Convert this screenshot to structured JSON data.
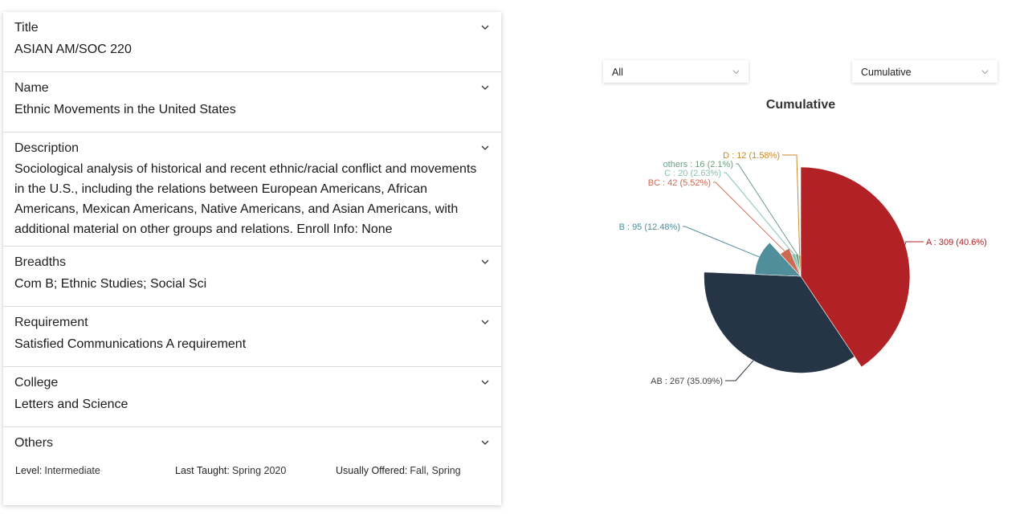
{
  "sections": {
    "title": {
      "header": "Title",
      "value": "ASIAN AM/SOC 220"
    },
    "name": {
      "header": "Name",
      "value": "Ethnic Movements in the United States"
    },
    "description": {
      "header": "Description",
      "value": "Sociological analysis of historical and recent ethnic/racial conflict and movements in the U.S., including the relations between European Americans, African Americans, Mexican Americans, Native Americans, and Asian Americans, with additional material on other groups and relations. Enroll Info: None"
    },
    "breadths": {
      "header": "Breadths",
      "value": "Com B; Ethnic Studies; Social Sci"
    },
    "requirement": {
      "header": "Requirement",
      "value": "Satisfied Communications A requirement"
    },
    "college": {
      "header": "College",
      "value": "Letters and Science"
    },
    "others": {
      "header": "Others",
      "level_label": "Level:",
      "level_value": "Intermediate",
      "last_taught_label": "Last Taught:",
      "last_taught_value": "Spring 2020",
      "usually_offered_label": "Usually Offered:",
      "usually_offered_value": "Fall, Spring"
    }
  },
  "filters": {
    "term_select": "All",
    "mode_select": "Cumulative"
  },
  "icons": {
    "section_toggle": "chevron-down-icon",
    "select_arrow": "chevron-down-icon"
  },
  "chart_data": {
    "type": "pie",
    "title": "Cumulative",
    "style": "rose",
    "slices": [
      {
        "name": "A",
        "value": 309,
        "percent": "40.6%",
        "label": "A : 309 (40.6%)",
        "color": "#b22126"
      },
      {
        "name": "AB",
        "value": 267,
        "percent": "35.09%",
        "label": "AB : 267 (35.09%)",
        "color": "#263545"
      },
      {
        "name": "B",
        "value": 95,
        "percent": "12.48%",
        "label": "B : 95 (12.48%)",
        "color": "#4f8e9a"
      },
      {
        "name": "BC",
        "value": 42,
        "percent": "5.52%",
        "label": "BC : 42 (5.52%)",
        "color": "#cf6a52"
      },
      {
        "name": "C",
        "value": 20,
        "percent": "2.63%",
        "label": "C : 20 (2.63%)",
        "color": "#85c3b2"
      },
      {
        "name": "others",
        "value": 16,
        "percent": "2.1%",
        "label": "others : 16 (2.1%)",
        "color": "#6f9d84"
      },
      {
        "name": "D",
        "value": 12,
        "percent": "1.58%",
        "label": "D : 12 (1.58%)",
        "color": "#c98a2c"
      }
    ]
  }
}
